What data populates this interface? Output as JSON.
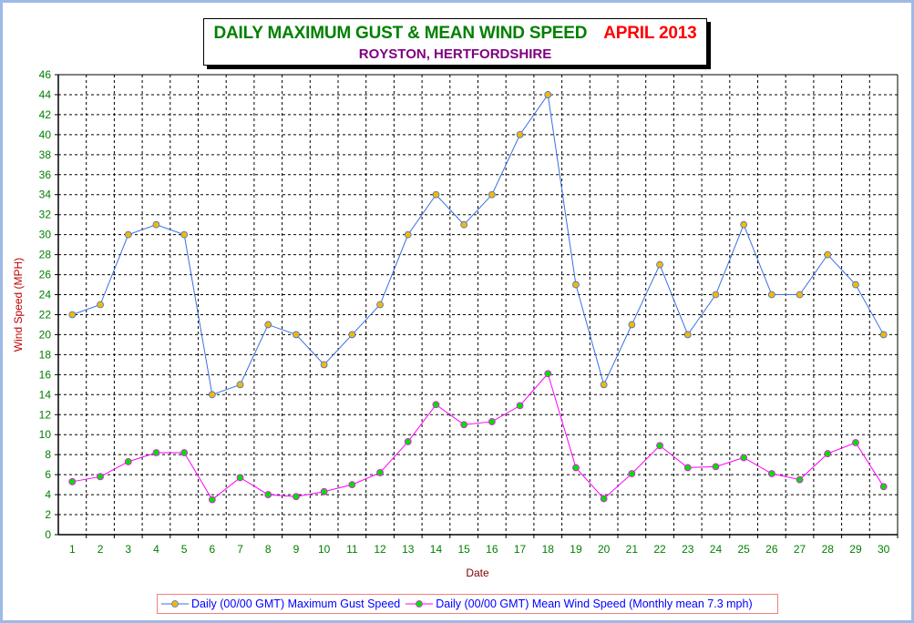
{
  "chart_data": {
    "type": "line",
    "title": "DAILY MAXIMUM GUST & MEAN WIND SPEED",
    "title_period": "APRIL 2013",
    "subtitle": "ROYSTON, HERTFORDSHIRE",
    "xlabel": "Date",
    "ylabel": "Wind Speed (MPH)",
    "ylim": [
      0,
      46
    ],
    "ytick_step": 2,
    "grid": true,
    "legend_position": "bottom",
    "categories": [
      "1",
      "2",
      "3",
      "4",
      "5",
      "6",
      "7",
      "8",
      "9",
      "10",
      "11",
      "12",
      "13",
      "14",
      "15",
      "16",
      "17",
      "18",
      "19",
      "20",
      "21",
      "22",
      "23",
      "24",
      "25",
      "26",
      "27",
      "28",
      "29",
      "30"
    ],
    "series": [
      {
        "name": "Daily (00/00 GMT) Maximum Gust Speed",
        "line_color": "#3a6fe0",
        "marker_color": "#f5b800",
        "values": [
          22,
          23,
          30,
          31,
          30,
          14,
          15,
          21,
          20,
          17,
          20,
          23,
          30,
          34,
          31,
          34,
          40,
          44,
          25,
          15,
          21,
          27,
          20,
          24,
          31,
          24,
          24,
          28,
          25,
          20
        ]
      },
      {
        "name": "Daily (00/00 GMT) Mean Wind Speed (Monthly mean 7.3 mph)",
        "line_color": "#ff00ff",
        "marker_color": "#00e000",
        "values": [
          5.3,
          5.8,
          7.3,
          8.2,
          8.2,
          3.5,
          5.7,
          4.0,
          3.8,
          4.3,
          5.0,
          6.2,
          9.3,
          13.0,
          11.0,
          11.3,
          12.9,
          16.1,
          6.7,
          3.6,
          6.1,
          8.9,
          6.7,
          6.8,
          7.7,
          6.1,
          5.5,
          8.1,
          9.2,
          4.8
        ]
      }
    ]
  }
}
